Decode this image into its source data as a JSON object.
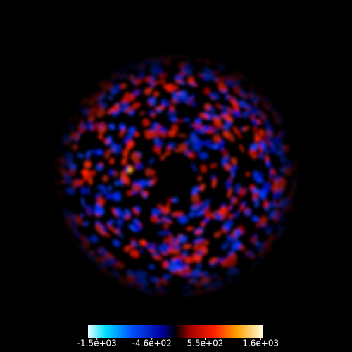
{
  "chart_data": {
    "type": "image",
    "colorbar": {
      "clim": [
        -1670,
        1650
      ],
      "ticks": [
        {
          "value": -1500,
          "label": "-1.5e+03"
        },
        {
          "value": -460,
          "label": "-4.6e+02"
        },
        {
          "value": 550,
          "label": "5.5e+02"
        },
        {
          "value": 1600,
          "label": "1.6e+03"
        }
      ]
    }
  }
}
